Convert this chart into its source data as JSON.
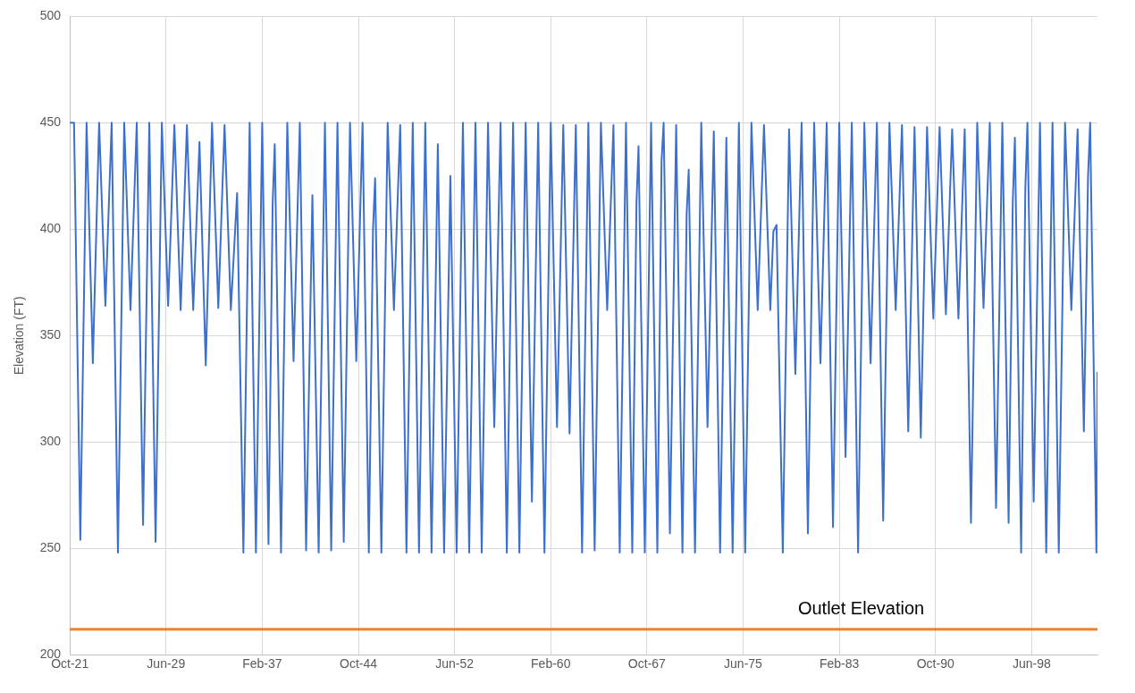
{
  "chart_data": {
    "type": "line",
    "ylabel": "Elevation (FT)",
    "xlim": [
      "1921-10",
      "2003-09"
    ],
    "xticks": [
      {
        "value": "1921-10",
        "label": "Oct-21"
      },
      {
        "value": "1929-06",
        "label": "Jun-29"
      },
      {
        "value": "1937-02",
        "label": "Feb-37"
      },
      {
        "value": "1944-10",
        "label": "Oct-44"
      },
      {
        "value": "1952-06",
        "label": "Jun-52"
      },
      {
        "value": "1960-02",
        "label": "Feb-60"
      },
      {
        "value": "1967-10",
        "label": "Oct-67"
      },
      {
        "value": "1975-06",
        "label": "Jun-75"
      },
      {
        "value": "1983-02",
        "label": "Feb-83"
      },
      {
        "value": "1990-10",
        "label": "Oct-90"
      },
      {
        "value": "1998-06",
        "label": "Jun-98"
      }
    ],
    "ylim": [
      200,
      500
    ],
    "yticks": [
      200,
      250,
      300,
      350,
      400,
      450,
      500
    ],
    "grid": true,
    "legend": false,
    "marker": "none",
    "line_style": "solid",
    "ref_lines": [
      {
        "axis": "y",
        "value": 212,
        "label": "Outlet Elevation",
        "color": "#f4802a"
      }
    ],
    "series": [
      {
        "color": "#3d6fcc",
        "x": [
          "1921-10",
          "1922-02",
          "1922-08",
          "1923-02",
          "1923-08",
          "1924-02",
          "1924-08",
          "1925-02",
          "1925-08",
          "1926-02",
          "1926-08",
          "1927-02",
          "1927-08",
          "1928-02",
          "1928-08",
          "1929-02",
          "1929-08",
          "1930-02",
          "1930-08",
          "1931-02",
          "1931-08",
          "1932-02",
          "1932-08",
          "1933-02",
          "1933-08",
          "1934-02",
          "1934-08",
          "1935-02",
          "1935-08",
          "1936-02",
          "1936-08",
          "1937-02",
          "1937-08",
          "1937-12",
          "1938-02",
          "1938-08",
          "1939-02",
          "1939-08",
          "1940-02",
          "1940-08",
          "1941-02",
          "1941-08",
          "1942-02",
          "1942-08",
          "1943-02",
          "1943-08",
          "1944-02",
          "1944-08",
          "1945-02",
          "1945-08",
          "1945-12",
          "1946-02",
          "1946-08",
          "1947-02",
          "1947-08",
          "1948-02",
          "1948-08",
          "1949-02",
          "1949-08",
          "1950-02",
          "1950-08",
          "1951-02",
          "1951-08",
          "1952-02",
          "1952-08",
          "1953-02",
          "1953-08",
          "1954-02",
          "1954-08",
          "1955-02",
          "1955-08",
          "1956-02",
          "1956-08",
          "1957-02",
          "1957-08",
          "1958-02",
          "1958-08",
          "1959-02",
          "1959-08",
          "1960-02",
          "1960-08",
          "1961-02",
          "1961-08",
          "1962-02",
          "1962-08",
          "1963-02",
          "1963-08",
          "1964-02",
          "1964-08",
          "1965-02",
          "1965-08",
          "1966-02",
          "1966-08",
          "1966-12",
          "1967-02",
          "1967-08",
          "1968-02",
          "1968-08",
          "1968-12",
          "1969-02",
          "1969-08",
          "1970-02",
          "1970-08",
          "1970-12",
          "1971-02",
          "1971-08",
          "1972-02",
          "1972-08",
          "1973-02",
          "1973-08",
          "1974-02",
          "1974-08",
          "1975-02",
          "1975-08",
          "1976-02",
          "1976-08",
          "1977-02",
          "1977-08",
          "1977-11",
          "1978-02",
          "1978-08",
          "1979-02",
          "1979-08",
          "1980-02",
          "1980-08",
          "1981-02",
          "1981-08",
          "1982-02",
          "1982-08",
          "1983-02",
          "1983-08",
          "1984-02",
          "1984-08",
          "1985-02",
          "1985-08",
          "1986-02",
          "1986-08",
          "1987-02",
          "1987-08",
          "1988-02",
          "1988-08",
          "1989-02",
          "1989-08",
          "1990-02",
          "1990-08",
          "1991-02",
          "1991-08",
          "1992-02",
          "1992-08",
          "1993-02",
          "1993-08",
          "1994-02",
          "1994-08",
          "1995-02",
          "1995-08",
          "1996-02",
          "1996-08",
          "1996-12",
          "1997-02",
          "1997-08",
          "1997-12",
          "1998-02",
          "1998-08",
          "1999-02",
          "1999-08",
          "2000-02",
          "2000-08",
          "2001-02",
          "2001-08",
          "2002-02",
          "2002-08",
          "2002-12",
          "2003-02",
          "2003-08",
          "2003-09"
        ],
        "values": [
          450,
          450,
          254,
          450,
          337,
          450,
          364,
          450,
          248,
          450,
          362,
          450,
          261,
          450,
          253,
          450,
          364,
          449,
          362,
          449,
          362,
          441,
          336,
          450,
          363,
          449,
          362,
          417,
          248,
          450,
          248,
          450,
          252,
          412,
          440,
          248,
          450,
          338,
          450,
          249,
          416,
          248,
          450,
          249,
          450,
          253,
          450,
          338,
          450,
          248,
          400,
          424,
          248,
          450,
          362,
          449,
          248,
          450,
          248,
          450,
          248,
          440,
          248,
          425,
          248,
          450,
          248,
          450,
          248,
          450,
          307,
          450,
          248,
          450,
          248,
          450,
          272,
          450,
          248,
          450,
          307,
          449,
          304,
          449,
          248,
          450,
          249,
          450,
          362,
          449,
          248,
          450,
          248,
          412,
          439,
          248,
          450,
          248,
          432,
          450,
          257,
          449,
          248,
          407,
          428,
          248,
          450,
          307,
          446,
          248,
          443,
          248,
          450,
          248,
          450,
          362,
          449,
          362,
          399,
          402,
          248,
          447,
          332,
          450,
          257,
          450,
          337,
          450,
          260,
          450,
          293,
          450,
          248,
          450,
          337,
          450,
          263,
          450,
          362,
          449,
          305,
          448,
          302,
          448,
          358,
          448,
          360,
          447,
          358,
          447,
          262,
          450,
          363,
          450,
          269,
          450,
          262,
          413,
          443,
          248,
          419,
          450,
          272,
          450,
          248,
          450,
          248,
          450,
          362,
          447,
          305,
          425,
          450,
          248,
          333
        ]
      }
    ]
  }
}
